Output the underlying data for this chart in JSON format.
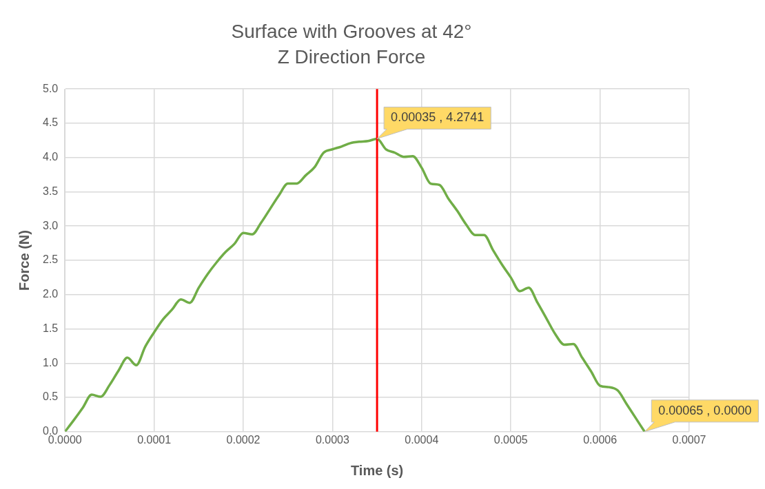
{
  "chart_data": {
    "type": "line",
    "title": "Surface with Grooves at 42°",
    "subtitle": "Z Direction Force",
    "xlabel": "Time (s)",
    "ylabel": "Force (N)",
    "x": [
      0,
      1e-05,
      2e-05,
      3e-05,
      4e-05,
      5e-05,
      6e-05,
      7e-05,
      8e-05,
      9e-05,
      0.0001,
      0.00011,
      0.00012,
      0.00013,
      0.00014,
      0.00015,
      0.00016,
      0.00017,
      0.00018,
      0.00019,
      0.0002,
      0.00021,
      0.00022,
      0.00023,
      0.00024,
      0.00025,
      0.00026,
      0.00027,
      0.00028,
      0.00029,
      0.0003,
      0.00031,
      0.00032,
      0.00033,
      0.00034,
      0.00035,
      0.00036,
      0.00037,
      0.00038,
      0.00039,
      0.0004,
      0.00041,
      0.00042,
      0.00043,
      0.00044,
      0.00045,
      0.00046,
      0.00047,
      0.00048,
      0.00049,
      0.0005,
      0.00051,
      0.00052,
      0.00053,
      0.00054,
      0.00055,
      0.00056,
      0.00057,
      0.00058,
      0.00059,
      0.0006,
      0.00061,
      0.00062,
      0.00063,
      0.00064,
      0.00065
    ],
    "series": [
      {
        "color": "#70ad47",
        "values": [
          0,
          0.17,
          0.35,
          0.54,
          0.51,
          0.68,
          0.89,
          1.08,
          0.97,
          1.24,
          1.45,
          1.64,
          1.78,
          1.93,
          1.88,
          2.1,
          2.3,
          2.47,
          2.62,
          2.74,
          2.9,
          2.88,
          3.05,
          3.25,
          3.45,
          3.62,
          3.62,
          3.74,
          3.86,
          4.07,
          4.12,
          4.16,
          4.21,
          4.23,
          4.24,
          4.2741,
          4.12,
          4.07,
          4.01,
          4.02,
          3.85,
          3.62,
          3.6,
          3.4,
          3.22,
          3.02,
          2.87,
          2.87,
          2.65,
          2.44,
          2.25,
          2.05,
          2.1,
          1.88,
          1.65,
          1.42,
          1.27,
          1.28,
          1.08,
          0.88,
          0.67,
          0.65,
          0.6,
          0.4,
          0.2,
          0
        ]
      }
    ],
    "xlim": [
      0,
      0.0007
    ],
    "xticks": [
      {
        "value": 0,
        "label": "0.0000"
      },
      {
        "value": 0.0001,
        "label": "0.0001"
      },
      {
        "value": 0.0002,
        "label": "0.0002"
      },
      {
        "value": 0.0003,
        "label": "0.0003"
      },
      {
        "value": 0.0004,
        "label": "0.0004"
      },
      {
        "value": 0.0005,
        "label": "0.0005"
      },
      {
        "value": 0.0006,
        "label": "0.0006"
      },
      {
        "value": 0.0007,
        "label": "0.0007"
      }
    ],
    "ylim": [
      0,
      5
    ],
    "yticks": [
      {
        "value": 0,
        "label": "0.0"
      },
      {
        "value": 0.5,
        "label": "0.5"
      },
      {
        "value": 1,
        "label": "1.0"
      },
      {
        "value": 1.5,
        "label": "1.5"
      },
      {
        "value": 2,
        "label": "2.0"
      },
      {
        "value": 2.5,
        "label": "2.5"
      },
      {
        "value": 3,
        "label": "3.0"
      },
      {
        "value": 3.5,
        "label": "3.5"
      },
      {
        "value": 4,
        "label": "4.0"
      },
      {
        "value": 4.5,
        "label": "4.5"
      },
      {
        "value": 5,
        "label": "5.0"
      }
    ],
    "ref_lines": [
      {
        "axis": "x",
        "value": 0.00035,
        "color": "#ff0000"
      }
    ],
    "annotations": [
      {
        "text": "0.00035 , 4.2741",
        "x": 0.00035,
        "y": 4.2741
      },
      {
        "text": "0.00065 , 0.0000",
        "x": 0.00065,
        "y": 0
      }
    ],
    "grid": true,
    "legend": false,
    "marker": "none",
    "line_style": "solid"
  }
}
